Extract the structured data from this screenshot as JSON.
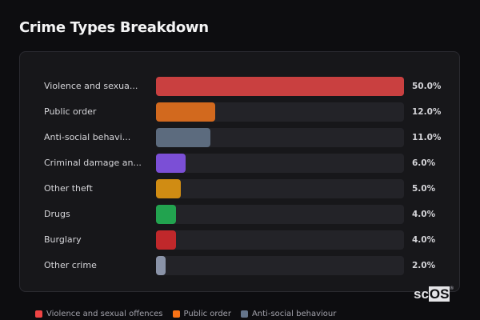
{
  "chart_data": {
    "type": "bar",
    "orientation": "horizontal",
    "title": "Crime Types Breakdown",
    "categories": [
      "Violence and sexua...",
      "Public order",
      "Anti-social behavi...",
      "Criminal damage an...",
      "Other theft",
      "Drugs",
      "Burglary",
      "Other crime"
    ],
    "values": [
      50.0,
      12.0,
      11.0,
      6.0,
      5.0,
      4.0,
      4.0,
      2.0
    ],
    "value_labels": [
      "50.0%",
      "12.0%",
      "11.0%",
      "6.0%",
      "5.0%",
      "4.0%",
      "4.0%",
      "2.0%"
    ],
    "colors": [
      "#c94040",
      "#d2691e",
      "#5c6b7e",
      "#7b4fd6",
      "#d08c13",
      "#22a34f",
      "#c0282b",
      "#8a93a8"
    ],
    "xlim": [
      0,
      50
    ],
    "legend": {
      "placement": "bottom",
      "entries": [
        {
          "name": "Violence and sexual offences",
          "color": "#ef4444"
        },
        {
          "name": "Public order",
          "color": "#f97316"
        },
        {
          "name": "Anti-social behaviour",
          "color": "#64748b"
        }
      ]
    }
  },
  "logo": {
    "text_a": "sc",
    "text_b": "OS",
    "mark": "®"
  }
}
